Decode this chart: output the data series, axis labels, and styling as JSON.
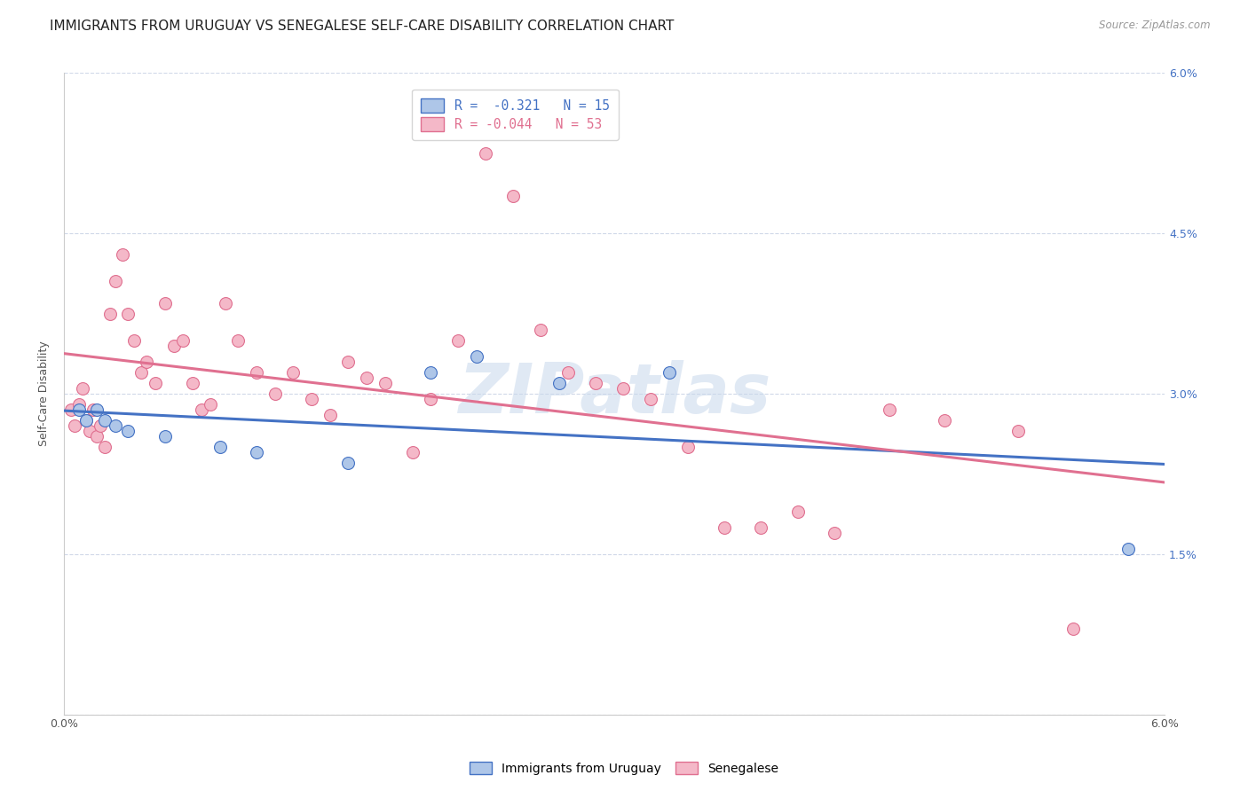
{
  "title": "IMMIGRANTS FROM URUGUAY VS SENEGALESE SELF-CARE DISABILITY CORRELATION CHART",
  "source": "Source: ZipAtlas.com",
  "ylabel": "Self-Care Disability",
  "xlim": [
    0.0,
    6.0
  ],
  "ylim": [
    0.0,
    6.0
  ],
  "xtick_positions": [
    0.0,
    1.0,
    2.0,
    3.0,
    4.0,
    5.0,
    6.0
  ],
  "xtick_labels": [
    "0.0%",
    "",
    "",
    "",
    "",
    "",
    "6.0%"
  ],
  "ytick_positions": [
    0.0,
    1.5,
    3.0,
    4.5,
    6.0
  ],
  "ytick_labels_right": [
    "",
    "1.5%",
    "3.0%",
    "4.5%",
    "6.0%"
  ],
  "legend_r1_val": "-0.321",
  "legend_n1_val": "15",
  "legend_r2_val": "-0.044",
  "legend_n2_val": "53",
  "watermark": "ZIPatlas",
  "blue_color": "#aec6e8",
  "blue_line_color": "#4472c4",
  "pink_color": "#f4b8c8",
  "pink_line_color": "#e07090",
  "blue_scatter_x": [
    0.08,
    0.12,
    0.18,
    0.22,
    0.28,
    0.35,
    0.55,
    0.85,
    1.05,
    1.55,
    2.0,
    2.25,
    2.7,
    3.3,
    5.8
  ],
  "blue_scatter_y": [
    2.85,
    2.75,
    2.85,
    2.75,
    2.7,
    2.65,
    2.6,
    2.5,
    2.45,
    2.35,
    3.2,
    3.35,
    3.1,
    3.2,
    1.55
  ],
  "pink_scatter_x": [
    0.04,
    0.06,
    0.08,
    0.1,
    0.12,
    0.14,
    0.16,
    0.18,
    0.2,
    0.22,
    0.25,
    0.28,
    0.32,
    0.35,
    0.38,
    0.42,
    0.45,
    0.5,
    0.55,
    0.6,
    0.65,
    0.7,
    0.75,
    0.8,
    0.88,
    0.95,
    1.05,
    1.15,
    1.25,
    1.35,
    1.45,
    1.55,
    1.65,
    1.75,
    1.9,
    2.0,
    2.15,
    2.3,
    2.45,
    2.6,
    2.75,
    2.9,
    3.05,
    3.2,
    3.4,
    3.6,
    3.8,
    4.0,
    4.2,
    4.5,
    4.8,
    5.2,
    5.5
  ],
  "pink_scatter_y": [
    2.85,
    2.7,
    2.9,
    3.05,
    2.75,
    2.65,
    2.85,
    2.6,
    2.7,
    2.5,
    3.75,
    4.05,
    4.3,
    3.75,
    3.5,
    3.2,
    3.3,
    3.1,
    3.85,
    3.45,
    3.5,
    3.1,
    2.85,
    2.9,
    3.85,
    3.5,
    3.2,
    3.0,
    3.2,
    2.95,
    2.8,
    3.3,
    3.15,
    3.1,
    2.45,
    2.95,
    3.5,
    5.25,
    4.85,
    3.6,
    3.2,
    3.1,
    3.05,
    2.95,
    2.5,
    1.75,
    1.75,
    1.9,
    1.7,
    2.85,
    2.75,
    2.65,
    0.8
  ],
  "bottom_legend_items": [
    "Immigrants from Uruguay",
    "Senegalese"
  ],
  "grid_color": "#d0d8e8",
  "background_color": "#ffffff",
  "title_fontsize": 11,
  "axis_label_fontsize": 9,
  "tick_fontsize": 9,
  "marker_size": 100
}
